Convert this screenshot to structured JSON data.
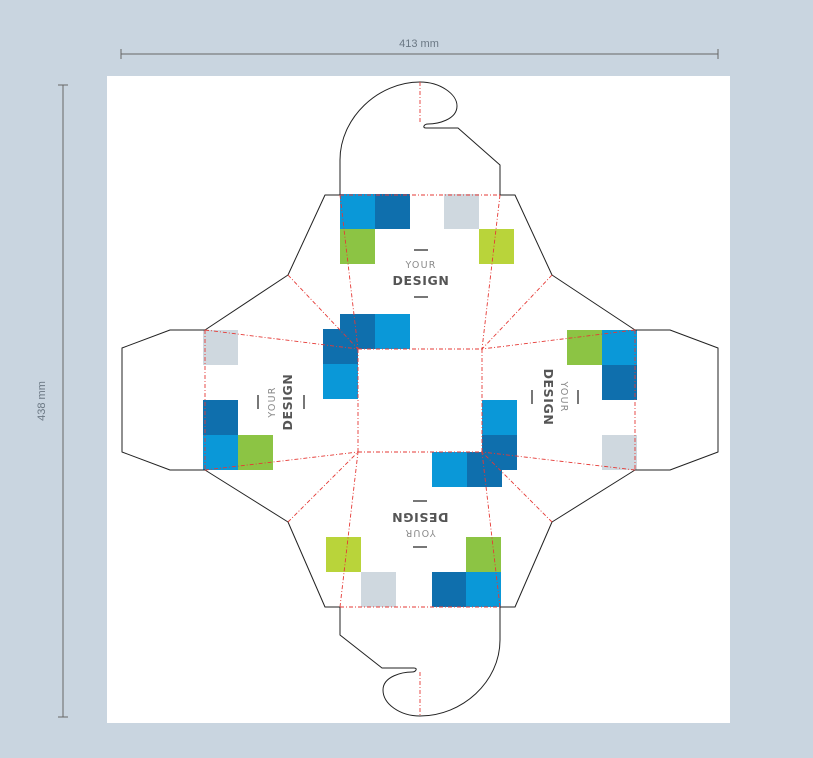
{
  "dimensions": {
    "width_label": "413 mm",
    "height_label": "438 mm"
  },
  "panels": {
    "top": {
      "line1": "YOUR",
      "line2": "DESIGN"
    },
    "left": {
      "line1": "YOUR",
      "line2": "DESIGN"
    },
    "right": {
      "line1": "YOUR",
      "line2": "DESIGN"
    },
    "bottom": {
      "line1": "YOUR",
      "line2": "DESIGN"
    }
  },
  "colors": {
    "background": "#c9d5e0",
    "sheet": "#ffffff",
    "cut_line": "#222222",
    "fold_line": "#e53935",
    "cyan": "#0a98d8",
    "dark_blue": "#0f6fad",
    "green": "#8cc444",
    "lime": "#b9d43a",
    "light_gray": "#cfd8df",
    "dimension_line": "#666666"
  }
}
